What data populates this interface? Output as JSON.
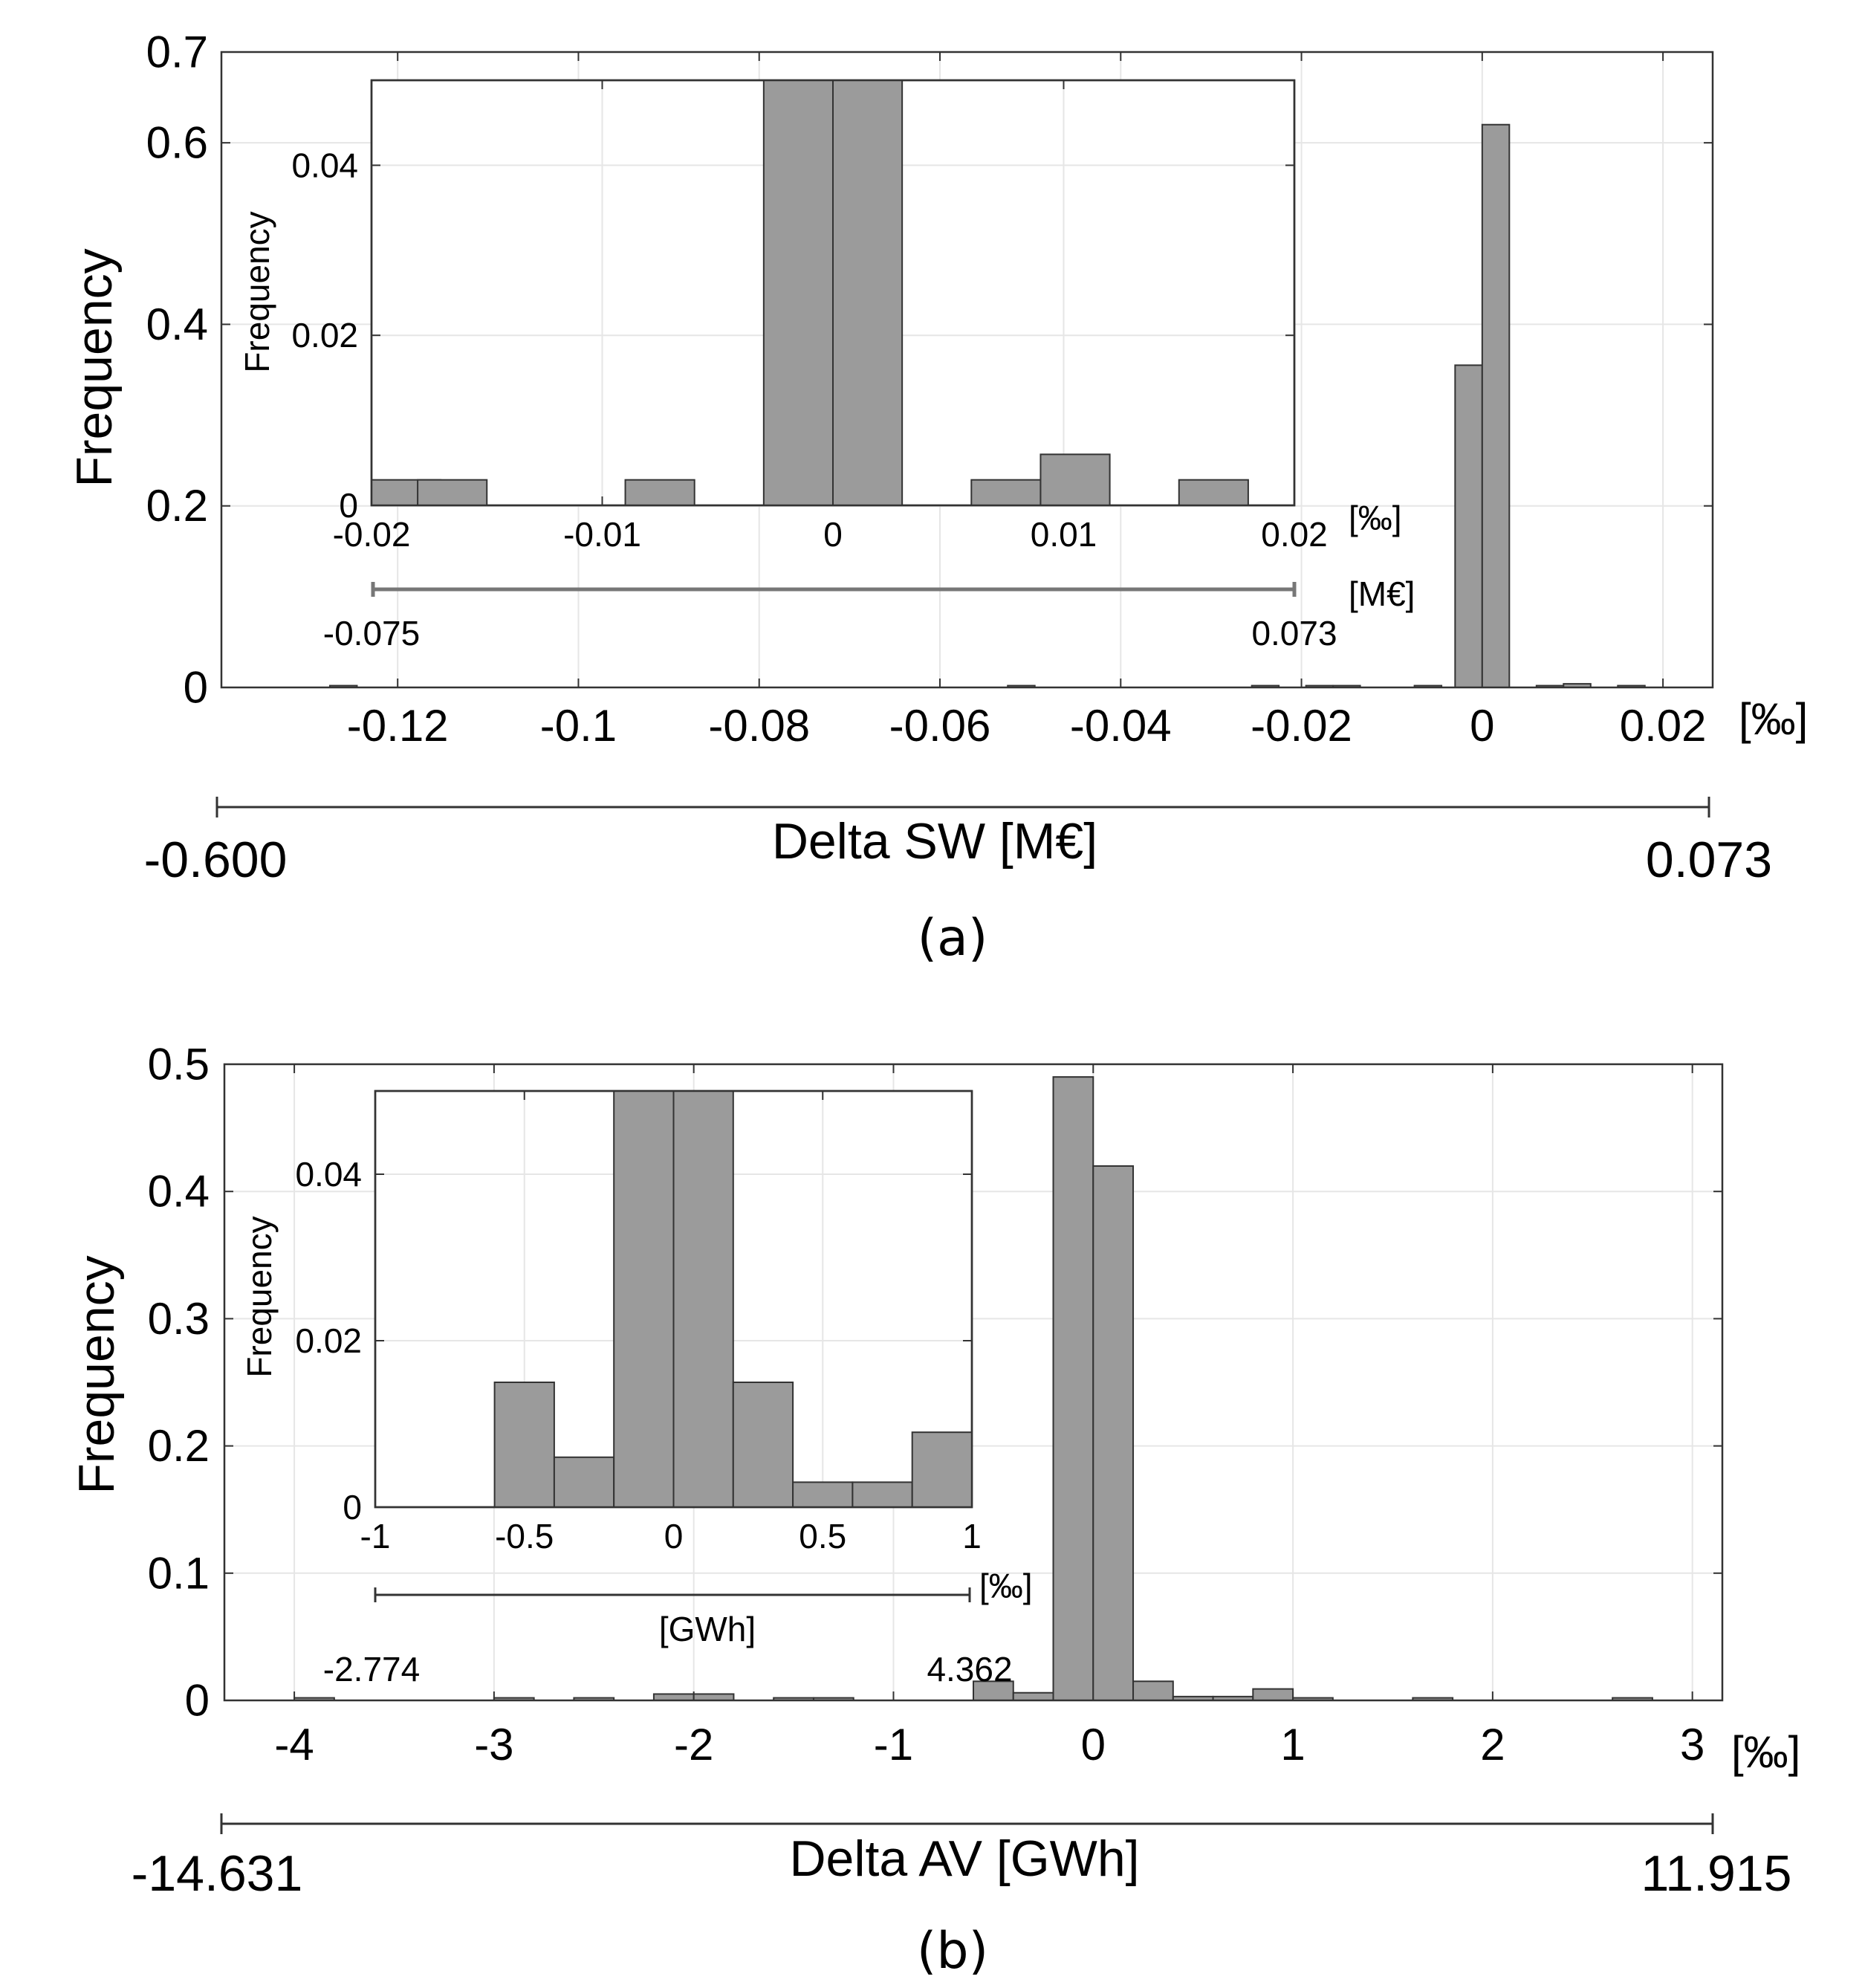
{
  "chart_data": [
    {
      "id": "a",
      "type": "bar",
      "caption": "(a)",
      "ylabel": "Frequency",
      "xlabel": "Delta SW [M€]",
      "x_unit": "[‰]",
      "xlim": [
        -0.1395,
        0.0255
      ],
      "ylim": [
        0,
        0.7
      ],
      "x_ticks": [
        -0.12,
        -0.1,
        -0.08,
        -0.06,
        -0.04,
        -0.02,
        0,
        0.02
      ],
      "x_tick_labels": [
        "-0.12",
        "-0.1",
        "-0.08",
        "-0.06",
        "-0.04",
        "-0.02",
        "0",
        "0.02"
      ],
      "y_ticks": [
        0,
        0.2,
        0.4,
        0.6
      ],
      "y_tick_labels": [
        "0",
        "0.2",
        "0.4",
        "0.6",
        "0.7"
      ],
      "y_tick_label_values": [
        0,
        0.2,
        0.4,
        0.6,
        0.7
      ],
      "secondary_axis": {
        "label": "Delta SW [M€]",
        "min_label": "-0.600",
        "max_label": "0.073"
      },
      "bin_width": 0.003,
      "bins": [
        {
          "start": -0.1275,
          "value": 0.002
        },
        {
          "start": -0.0525,
          "value": 0.002
        },
        {
          "start": -0.0255,
          "value": 0.002
        },
        {
          "start": -0.0195,
          "value": 0.002
        },
        {
          "start": -0.0165,
          "value": 0.002
        },
        {
          "start": -0.0075,
          "value": 0.002
        },
        {
          "start": -0.003,
          "value": 0.355
        },
        {
          "start": 0.0,
          "value": 0.62
        },
        {
          "start": 0.006,
          "value": 0.002
        },
        {
          "start": 0.009,
          "value": 0.004
        },
        {
          "start": 0.015,
          "value": 0.002
        }
      ],
      "inset": {
        "ylabel": "Frequency",
        "xlim": [
          -0.02,
          0.02
        ],
        "ylim": [
          0,
          0.05
        ],
        "x_ticks": [
          -0.02,
          -0.01,
          0,
          0.01,
          0.02
        ],
        "x_tick_labels": [
          "-0.02",
          "-0.01",
          "0",
          "0.01",
          "0.02"
        ],
        "y_ticks": [
          0,
          0.02,
          0.04
        ],
        "y_tick_labels": [
          "0",
          "0.02",
          "0.04"
        ],
        "x_unit": "[‰]",
        "rule_unit": "[M€]",
        "rule_min_label": "-0.075",
        "rule_max_label": "0.073",
        "bin_width": 0.003,
        "bins": [
          {
            "start": -0.02,
            "value": 0.003
          },
          {
            "start": -0.018,
            "value": 0.003
          },
          {
            "start": -0.009,
            "value": 0.003
          },
          {
            "start": -0.003,
            "value": 0.05
          },
          {
            "start": 0.0,
            "value": 0.05
          },
          {
            "start": 0.006,
            "value": 0.003
          },
          {
            "start": 0.009,
            "value": 0.006
          },
          {
            "start": 0.015,
            "value": 0.003
          }
        ]
      }
    },
    {
      "id": "b",
      "type": "bar",
      "caption": "(b)",
      "ylabel": "Frequency",
      "xlabel": "Delta AV [GWh]",
      "x_unit": "[‰]",
      "xlim": [
        -4.35,
        3.15
      ],
      "ylim": [
        0,
        0.5
      ],
      "x_ticks": [
        -4,
        -3,
        -2,
        -1,
        0,
        1,
        2,
        3
      ],
      "x_tick_labels": [
        "-4",
        "-3",
        "-2",
        "-1",
        "0",
        "1",
        "2",
        "3"
      ],
      "y_ticks": [
        0,
        0.1,
        0.2,
        0.3,
        0.4,
        0.5
      ],
      "y_tick_labels": [
        "0",
        "0.1",
        "0.2",
        "0.3",
        "0.4",
        "0.5"
      ],
      "secondary_axis": {
        "label": "Delta AV [GWh]",
        "min_label": "-14.631",
        "max_label": "11.915"
      },
      "bin_width": 0.2,
      "bins": [
        {
          "start": -4.0,
          "value": 0.002
        },
        {
          "start": -3.0,
          "value": 0.002
        },
        {
          "start": -2.6,
          "value": 0.002
        },
        {
          "start": -2.2,
          "value": 0.005
        },
        {
          "start": -2.0,
          "value": 0.005
        },
        {
          "start": -1.6,
          "value": 0.002
        },
        {
          "start": -1.4,
          "value": 0.002
        },
        {
          "start": -0.6,
          "value": 0.015
        },
        {
          "start": -0.4,
          "value": 0.006
        },
        {
          "start": -0.2,
          "value": 0.49
        },
        {
          "start": 0.0,
          "value": 0.42
        },
        {
          "start": 0.2,
          "value": 0.015
        },
        {
          "start": 0.4,
          "value": 0.003
        },
        {
          "start": 0.6,
          "value": 0.003
        },
        {
          "start": 0.8,
          "value": 0.009
        },
        {
          "start": 1.0,
          "value": 0.002
        },
        {
          "start": 1.6,
          "value": 0.002
        },
        {
          "start": 2.6,
          "value": 0.002
        }
      ],
      "inset": {
        "ylabel": "Frequency",
        "xlim": [
          -1,
          1
        ],
        "ylim": [
          0,
          0.05
        ],
        "x_ticks": [
          -1,
          -0.5,
          0,
          0.5,
          1
        ],
        "x_tick_labels": [
          "-1",
          "-0.5",
          "0",
          "0.5",
          "1"
        ],
        "y_ticks": [
          0,
          0.02,
          0.04
        ],
        "y_tick_labels": [
          "0",
          "0.02",
          "0.04"
        ],
        "x_unit": "[‰]",
        "rule_unit": "[GWh]",
        "rule_min_label": "-2.774",
        "rule_max_label": "4.362",
        "bin_width": 0.2,
        "bins": [
          {
            "start": -0.6,
            "value": 0.015
          },
          {
            "start": -0.4,
            "value": 0.006
          },
          {
            "start": -0.2,
            "value": 0.05
          },
          {
            "start": 0.0,
            "value": 0.05
          },
          {
            "start": 0.2,
            "value": 0.015
          },
          {
            "start": 0.4,
            "value": 0.003
          },
          {
            "start": 0.6,
            "value": 0.003
          },
          {
            "start": 0.8,
            "value": 0.009
          }
        ]
      }
    }
  ]
}
